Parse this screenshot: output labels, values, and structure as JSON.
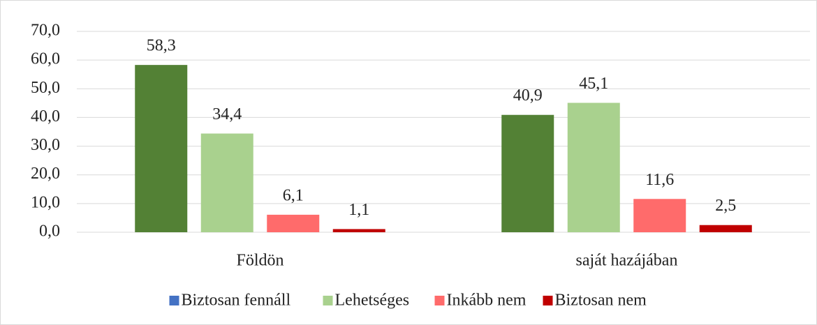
{
  "chart_data": {
    "type": "bar",
    "categories": [
      "Földön",
      "saját hazájában"
    ],
    "series": [
      {
        "name": "Biztosan fennáll",
        "color": "#538135",
        "legend_color": "#4472c4",
        "values": [
          58.3,
          40.9
        ],
        "value_labels": [
          "58,3",
          "40,9"
        ]
      },
      {
        "name": "Lehetséges",
        "color": "#a9d18e",
        "legend_color": "#a9d18e",
        "values": [
          34.4,
          45.1
        ],
        "value_labels": [
          "34,4",
          "45,1"
        ]
      },
      {
        "name": "Inkább nem",
        "color": "#ff6b6b",
        "legend_color": "#ff6b6b",
        "values": [
          6.1,
          11.6
        ],
        "value_labels": [
          "6,1",
          "11,6"
        ]
      },
      {
        "name": "Biztosan nem",
        "color": "#c00000",
        "legend_color": "#c00000",
        "values": [
          1.1,
          2.5
        ],
        "value_labels": [
          "1,1",
          "2,5"
        ]
      }
    ],
    "ylim": [
      0,
      70
    ],
    "yticks": [
      {
        "value": 0,
        "label": "0,0"
      },
      {
        "value": 10,
        "label": "10,0"
      },
      {
        "value": 20,
        "label": "20,0"
      },
      {
        "value": 30,
        "label": "30,0"
      },
      {
        "value": 40,
        "label": "40,0"
      },
      {
        "value": 50,
        "label": "50,0"
      },
      {
        "value": 60,
        "label": "60,0"
      },
      {
        "value": 70,
        "label": "70,0"
      }
    ],
    "grid": true,
    "legend": "bottom"
  }
}
